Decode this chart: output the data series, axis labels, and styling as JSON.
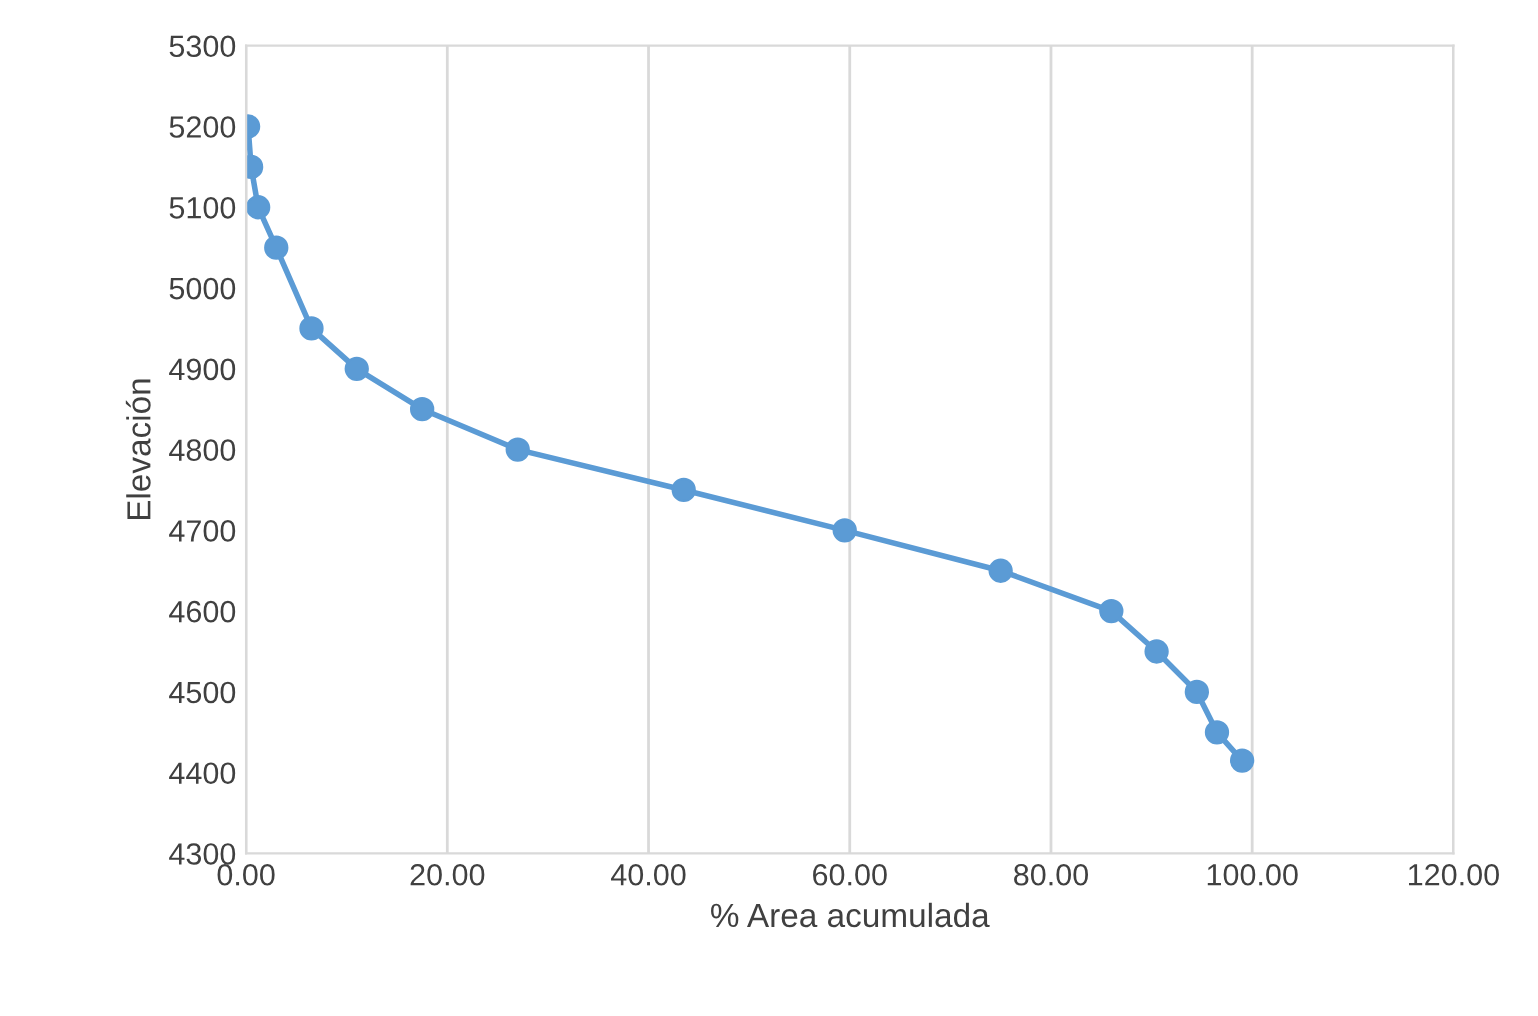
{
  "chart_data": {
    "type": "line",
    "xlabel": "% Area acumulada",
    "ylabel": "Elevación",
    "x": [
      0.2,
      0.5,
      1.2,
      3,
      6.5,
      11,
      17.5,
      27,
      43.5,
      59.5,
      75,
      86,
      90.5,
      94.5,
      96.5,
      99
    ],
    "series": [
      {
        "color": "#5b9bd5",
        "values": [
          5200,
          5150,
          5100,
          5050,
          4950,
          4900,
          4850,
          4800,
          4750,
          4700,
          4650,
          4600,
          4550,
          4500,
          4450,
          4415
        ]
      }
    ],
    "xlim": [
      0,
      120
    ],
    "xticks": [
      {
        "value": 0,
        "label": "0.00"
      },
      {
        "value": 20,
        "label": "20.00"
      },
      {
        "value": 40,
        "label": "40.00"
      },
      {
        "value": 60,
        "label": "60.00"
      },
      {
        "value": 80,
        "label": "80.00"
      },
      {
        "value": 100,
        "label": "100.00"
      },
      {
        "value": 120,
        "label": "120.00"
      }
    ],
    "ylim": [
      4300,
      5300
    ],
    "yticks": [
      4300,
      4400,
      4500,
      4600,
      4700,
      4800,
      4900,
      5000,
      5100,
      5200,
      5300
    ],
    "grid": "x",
    "marker": "circle",
    "line_style": "solid"
  }
}
